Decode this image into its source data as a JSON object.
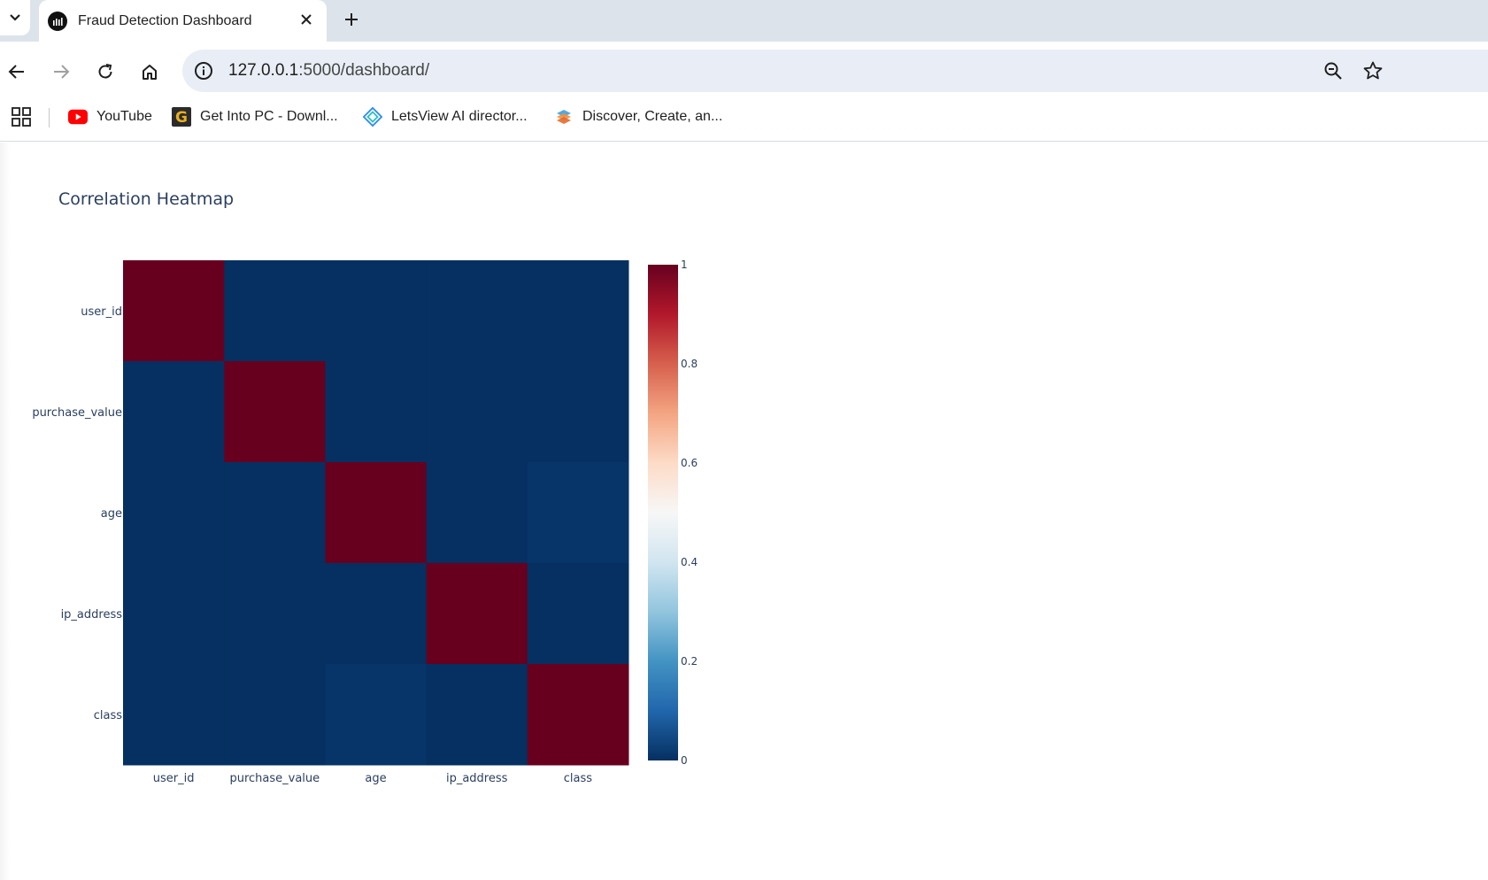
{
  "browser": {
    "tab_title": "Fraud Detection Dashboard",
    "url_host": "127.0.0.1",
    "url_path": ":5000/dashboard/"
  },
  "bookmarks": [
    {
      "label": "YouTube",
      "icon": "youtube-icon"
    },
    {
      "label": "Get Into PC - Downl...",
      "icon": "getintopc-icon"
    },
    {
      "label": "LetsView AI director...",
      "icon": "letsview-icon"
    },
    {
      "label": "Discover, Create, an...",
      "icon": "discover-icon"
    }
  ],
  "chart_data": {
    "type": "heatmap",
    "title": "Correlation Heatmap",
    "x": [
      "user_id",
      "purchase_value",
      "age",
      "ip_address",
      "class"
    ],
    "y": [
      "user_id",
      "purchase_value",
      "age",
      "ip_address",
      "class"
    ],
    "z": [
      [
        1.0,
        0.0,
        0.0,
        0.0,
        0.0
      ],
      [
        0.0,
        1.0,
        0.0,
        0.0,
        0.0
      ],
      [
        0.0,
        0.0,
        1.0,
        0.0,
        0.01
      ],
      [
        0.0,
        0.0,
        0.0,
        1.0,
        -0.01
      ],
      [
        0.0,
        0.0,
        0.01,
        -0.01,
        1.0
      ]
    ],
    "colorscale": "RdBu reversed",
    "zmin": 0,
    "zmax": 1,
    "colorbar_ticks": [
      0,
      0.2,
      0.4,
      0.6,
      0.8,
      1
    ],
    "colorbar_tick_labels": [
      "0",
      "0.2",
      "0.4",
      "0.6",
      "0.8",
      "1"
    ]
  }
}
